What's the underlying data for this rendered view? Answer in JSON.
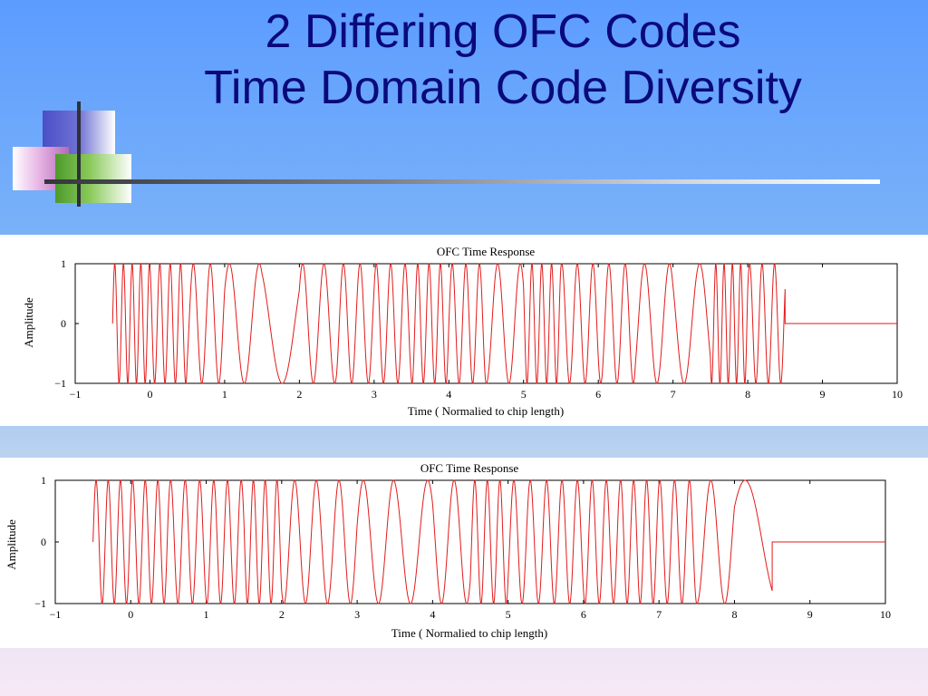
{
  "slide": {
    "title_line1": "2 Differing OFC Codes",
    "title_line2": "Time Domain Code Diversity"
  },
  "colors": {
    "title": "#0a0a7c",
    "signal": "#e31a1a",
    "axes": "#000000"
  },
  "chart_data": [
    {
      "type": "line",
      "title": "OFC Time Response",
      "xlabel": "Time ( Normalied to chip length)",
      "ylabel": "Amplitude",
      "xlim": [
        -1,
        10
      ],
      "ylim": [
        -1,
        1
      ],
      "x_ticks": [
        "−1",
        "0",
        "1",
        "2",
        "3",
        "4",
        "5",
        "6",
        "7",
        "8",
        "9",
        "10"
      ],
      "y_ticks": [
        "−1",
        "0",
        "1"
      ],
      "grid": false,
      "legend": "none",
      "signal_start": -0.5,
      "signal_end": 8.5,
      "chip_length": 1,
      "chip_frequencies": [
        8.6,
        7.2,
        4.4,
        2.5,
        1.5,
        3.5,
        4.5,
        5.2,
        6.6,
        5.5,
        3.3,
        7.6,
        4.8,
        4.6,
        3.0,
        2.4,
        9.0,
        6.0
      ]
    },
    {
      "type": "line",
      "title": "OFC Time Response",
      "xlabel": "Time ( Normalied to chip length)",
      "ylabel": "Amplitude",
      "xlim": [
        -1,
        10
      ],
      "ylim": [
        -1,
        1
      ],
      "x_ticks": [
        "−1",
        "0",
        "1",
        "2",
        "3",
        "4",
        "5",
        "6",
        "7",
        "8",
        "9",
        "10"
      ],
      "y_ticks": [
        "−1",
        "0",
        "1"
      ],
      "grid": false,
      "legend": "none",
      "signal_start": -0.5,
      "signal_end": 8.5,
      "chip_length": 1,
      "chip_frequencies": [
        6.2,
        6.0,
        5.2,
        5.5,
        6.4,
        3.5,
        3.3,
        2.5,
        2.2,
        3.0,
        6.0,
        4.6,
        4.9,
        5.3,
        5.8,
        5.1,
        2.7,
        1.1
      ]
    }
  ]
}
